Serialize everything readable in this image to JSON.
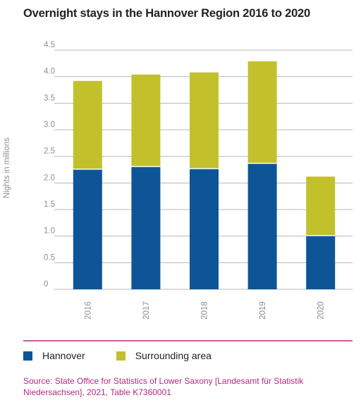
{
  "chart_data": {
    "type": "bar",
    "stacked": true,
    "title": "Overnight stays in the Hannover Region 2016 to 2020",
    "ylabel": "Nights in millions",
    "categories": [
      "2016",
      "2017",
      "2018",
      "2019",
      "2020"
    ],
    "series": [
      {
        "name": "Hannover",
        "color": "#0d5596",
        "values": [
          2.26,
          2.31,
          2.27,
          2.37,
          1.01
        ]
      },
      {
        "name": "Surrounding area",
        "color": "#c2c12c",
        "values": [
          1.66,
          1.73,
          1.81,
          1.92,
          1.11
        ]
      }
    ],
    "ylim": [
      0,
      4.5
    ],
    "yticks": [
      "0",
      "0.5",
      "1.0",
      "1.5",
      "2.0",
      "2.5",
      "3.0",
      "3.5",
      "4.0",
      "4.5"
    ],
    "grid": true,
    "legend_position": "bottom-left",
    "source": "Source: State Office for Statistics of Lower Saxony [Landesamt für Statistik Niedersachsen], 2021, Table K7360001"
  },
  "colors": {
    "separator": "#b5297f",
    "grid": "#b8b8b8"
  }
}
